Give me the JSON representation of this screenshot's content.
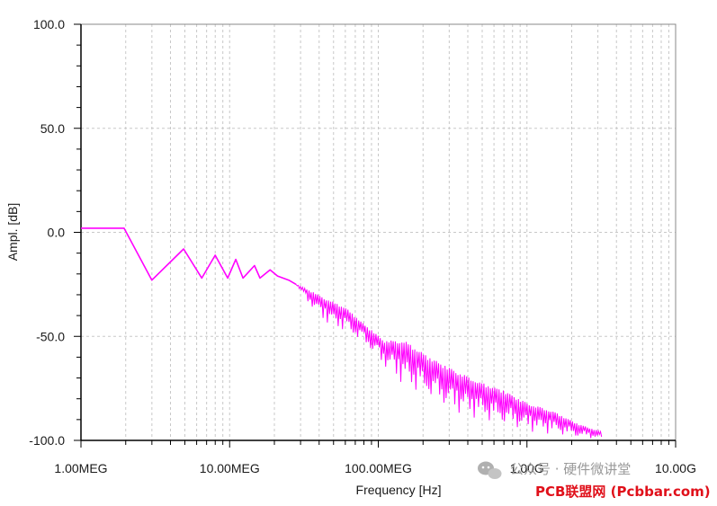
{
  "chart_data": {
    "type": "line",
    "xlabel": "Frequency [Hz]",
    "ylabel": "Ampl. [dB]",
    "x_scale": "log",
    "xlim": [
      1000000,
      10000000000
    ],
    "ylim": [
      -100,
      100
    ],
    "grid": true,
    "x_ticks": [
      {
        "value": 1000000,
        "label": "1.00MEG"
      },
      {
        "value": 10000000,
        "label": "10.00MEG"
      },
      {
        "value": 100000000,
        "label": "100.00MEG"
      },
      {
        "value": 1000000000,
        "label": "1.00G"
      },
      {
        "value": 10000000000,
        "label": "10.00G"
      }
    ],
    "y_ticks": [
      {
        "value": 100,
        "label": "100.0"
      },
      {
        "value": 50,
        "label": "50.0"
      },
      {
        "value": 0,
        "label": "0.0"
      },
      {
        "value": -50,
        "label": "-50.0"
      },
      {
        "value": -100,
        "label": "-100.0"
      }
    ],
    "series": [
      {
        "color": "#ff00ff",
        "x": [
          1000000,
          1950000,
          3000000,
          4900000,
          6500000,
          8000000,
          9700000,
          11000000,
          12300000,
          14700000,
          16000000,
          18700000,
          21000000,
          25000000,
          28000000
        ],
        "y": [
          2,
          2,
          -23,
          -8,
          -22,
          -11,
          -22,
          -13,
          -22,
          -16,
          -22,
          -18,
          -21,
          -23,
          -25
        ],
        "envelope": {
          "x": [
            28000000,
            35000000,
            45000000,
            60000000,
            80000000,
            110000000,
            150000000,
            220000000,
            320000000,
            480000000,
            700000000,
            1000000000,
            1500000000,
            2200000000,
            3200000000
          ],
          "upper": [
            -25,
            -28,
            -32,
            -36,
            -44,
            -52,
            -52,
            -60,
            -66,
            -72,
            -76,
            -82,
            -86,
            -92,
            -96
          ],
          "lower": [
            -25,
            -37,
            -46,
            -50,
            -55,
            -67,
            -78,
            -83,
            -90,
            -93,
            -96,
            -98,
            -99,
            -100,
            -100
          ]
        }
      }
    ]
  },
  "watermark": {
    "line1": "公众号 · 硬件微讲堂",
    "line2": "PCB联盟网 (Pcbbar.com)"
  }
}
